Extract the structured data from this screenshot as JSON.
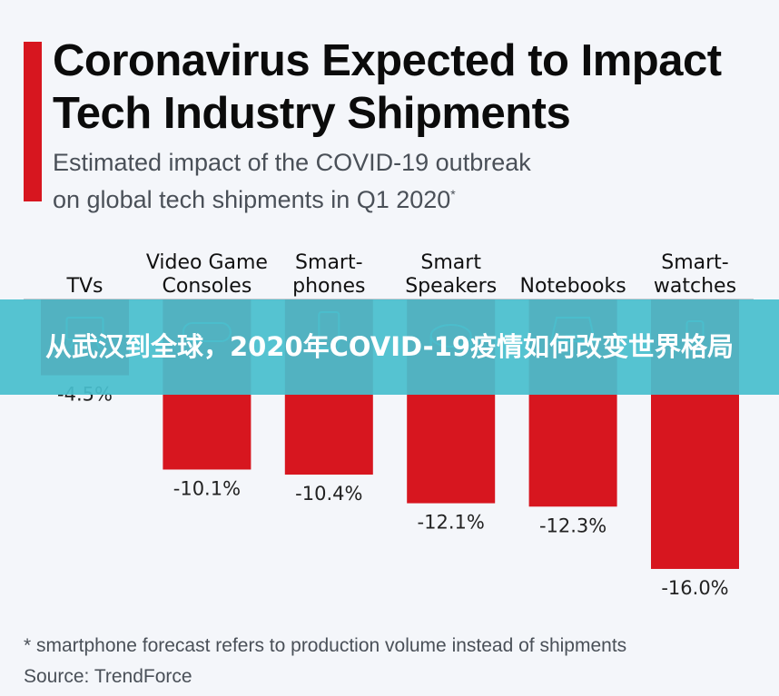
{
  "header": {
    "title": "Coronavirus Expected to Impact Tech Industry Shipments",
    "subtitle_line1": "Estimated impact of the COVID-19 outbreak",
    "subtitle_line2": "on global tech shipments in Q1 2020",
    "subtitle_mark": "*"
  },
  "overlay_banner": {
    "text": "从武汉到全球，2020年COVID-19疫情如何改变世界格局"
  },
  "footer": {
    "footnote": "* smartphone forecast refers to production volume instead of shipments",
    "source": "Source: TrendForce"
  },
  "colors": {
    "bar": "#d7161f",
    "accent": "#d7161f",
    "banner": "#48bece"
  },
  "chart_data": {
    "type": "bar",
    "orientation": "vertical-negative",
    "title": "Coronavirus Expected to Impact Tech Industry Shipments",
    "subtitle": "Estimated impact of the COVID-19 outbreak on global tech shipments in Q1 2020*",
    "categories": [
      [
        "TVs"
      ],
      [
        "Video Game",
        "Consoles"
      ],
      [
        "Smart-",
        "phones"
      ],
      [
        "Smart",
        "Speakers"
      ],
      [
        "Notebooks"
      ],
      [
        "Smart-",
        "watches"
      ]
    ],
    "category_icons": [
      "tv-icon",
      "gamepad-icon",
      "smartphone-icon",
      "smart-speaker-icon",
      "laptop-icon",
      "smartwatch-icon"
    ],
    "values": [
      -4.5,
      -10.1,
      -10.4,
      -12.1,
      -12.3,
      -16.0
    ],
    "value_labels": [
      "-4.5%",
      "-10.1%",
      "-10.4%",
      "-12.1%",
      "-12.3%",
      "-16.0%"
    ],
    "unit": "%",
    "xlabel": "",
    "ylabel": "",
    "ylim": [
      -16,
      0
    ],
    "grid": false,
    "legend": "none"
  }
}
